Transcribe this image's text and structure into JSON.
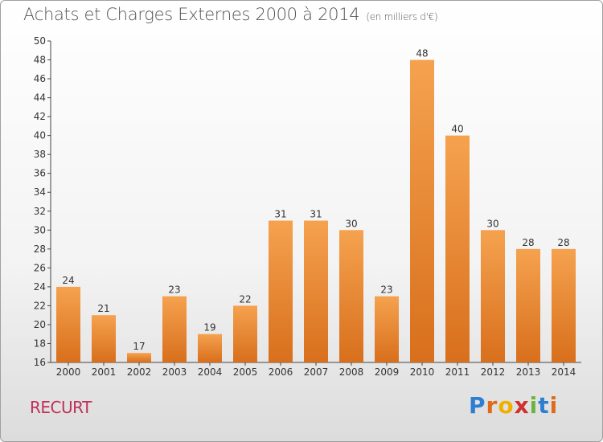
{
  "header": {
    "title": "Achats et Charges Externes 2000 à 2014",
    "subtitle": "(en milliers d'€)"
  },
  "footer": {
    "commune": "RECURT",
    "logo": "Proxiti"
  },
  "colors": {
    "bar_top": "#f5a24f",
    "bar_bottom": "#d86f1c",
    "commune": "#c0305a"
  },
  "chart_data": {
    "type": "bar",
    "title": "Achats et Charges Externes 2000 à 2014",
    "subtitle": "(en milliers d'€)",
    "xlabel": "",
    "ylabel": "",
    "categories": [
      "2000",
      "2001",
      "2002",
      "2003",
      "2004",
      "2005",
      "2006",
      "2007",
      "2008",
      "2009",
      "2010",
      "2011",
      "2012",
      "2013",
      "2014"
    ],
    "values": [
      24,
      21,
      17,
      23,
      19,
      22,
      31,
      31,
      30,
      23,
      48,
      40,
      30,
      28,
      28
    ],
    "ylim": [
      16,
      50
    ],
    "yticks": [
      16,
      18,
      20,
      22,
      24,
      26,
      28,
      30,
      32,
      34,
      36,
      38,
      40,
      42,
      44,
      46,
      48,
      50
    ],
    "grid": false,
    "data_labels": true
  }
}
